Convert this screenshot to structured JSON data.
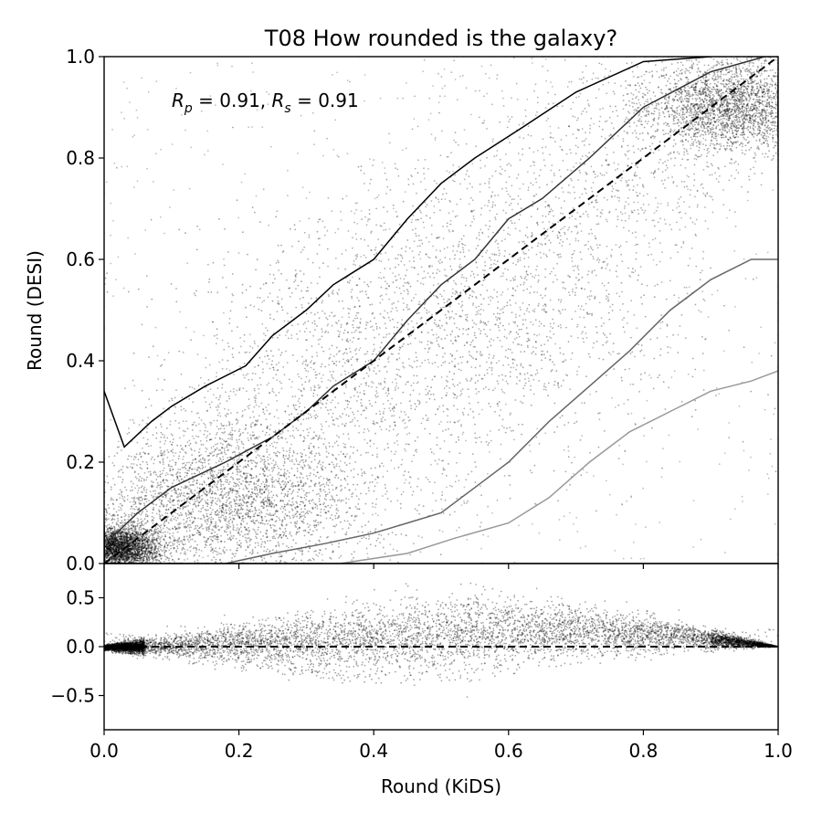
{
  "chart_data": {
    "type": "scatter",
    "title": "T08 How rounded is the galaxy?",
    "annotation": {
      "rp_symbol": "R",
      "rp_sub": "p",
      "rp_value": " = 0.91, ",
      "rs_symbol": "R",
      "rs_sub": "s",
      "rs_value": " = 0.91"
    },
    "xlabel": "Round (KiDS)",
    "main_panel": {
      "ylabel": "Round (DESI)",
      "xlim": [
        0,
        1
      ],
      "ylim": [
        0,
        1
      ],
      "xticks": [
        "0.0",
        "0.2",
        "0.4",
        "0.6",
        "0.8",
        "1.0"
      ],
      "yticks": [
        "0.0",
        "0.2",
        "0.4",
        "0.6",
        "0.8",
        "1.0"
      ],
      "reference_line": {
        "style": "dashed",
        "from": [
          0,
          0
        ],
        "to": [
          1,
          1
        ]
      },
      "point_color": "#000000",
      "contour_colors": [
        "#000000",
        "#333333",
        "#666666",
        "#999999",
        "#bbbbbb"
      ],
      "density_clusters": [
        {
          "x": 0.02,
          "y": 0.03,
          "spread": 0.03,
          "weight": "very high"
        },
        {
          "x": 0.2,
          "y": 0.12,
          "spread": 0.1,
          "weight": "high"
        },
        {
          "x": 0.5,
          "y": 0.45,
          "spread": 0.2,
          "weight": "medium"
        },
        {
          "x": 0.93,
          "y": 0.9,
          "spread": 0.06,
          "weight": "high"
        }
      ],
      "contours": [
        [
          [
            0.0,
            0.34
          ],
          [
            0.03,
            0.23
          ],
          [
            0.07,
            0.28
          ],
          [
            0.1,
            0.31
          ],
          [
            0.15,
            0.35
          ],
          [
            0.21,
            0.39
          ],
          [
            0.25,
            0.45
          ],
          [
            0.3,
            0.5
          ],
          [
            0.34,
            0.55
          ],
          [
            0.4,
            0.6
          ],
          [
            0.45,
            0.68
          ],
          [
            0.5,
            0.75
          ],
          [
            0.55,
            0.8
          ],
          [
            0.62,
            0.86
          ],
          [
            0.7,
            0.93
          ],
          [
            0.8,
            0.99
          ],
          [
            0.9,
            1.0
          ]
        ],
        [
          [
            0.01,
            0.05
          ],
          [
            0.05,
            0.1
          ],
          [
            0.1,
            0.15
          ],
          [
            0.18,
            0.2
          ],
          [
            0.25,
            0.25
          ],
          [
            0.3,
            0.3
          ],
          [
            0.34,
            0.35
          ],
          [
            0.4,
            0.4
          ],
          [
            0.45,
            0.48
          ],
          [
            0.5,
            0.55
          ],
          [
            0.55,
            0.6
          ],
          [
            0.6,
            0.68
          ],
          [
            0.65,
            0.72
          ],
          [
            0.72,
            0.8
          ],
          [
            0.8,
            0.9
          ],
          [
            0.9,
            0.97
          ],
          [
            0.98,
            1.0
          ]
        ],
        [
          [
            0.18,
            0.0
          ],
          [
            0.25,
            0.02
          ],
          [
            0.33,
            0.04
          ],
          [
            0.4,
            0.06
          ],
          [
            0.45,
            0.08
          ],
          [
            0.5,
            0.1
          ],
          [
            0.55,
            0.15
          ],
          [
            0.6,
            0.2
          ],
          [
            0.66,
            0.28
          ],
          [
            0.72,
            0.35
          ],
          [
            0.78,
            0.42
          ],
          [
            0.84,
            0.5
          ],
          [
            0.9,
            0.56
          ],
          [
            0.96,
            0.6
          ],
          [
            1.0,
            0.6
          ]
        ],
        [
          [
            0.35,
            0.0
          ],
          [
            0.45,
            0.02
          ],
          [
            0.52,
            0.05
          ],
          [
            0.6,
            0.08
          ],
          [
            0.66,
            0.13
          ],
          [
            0.72,
            0.2
          ],
          [
            0.78,
            0.26
          ],
          [
            0.84,
            0.3
          ],
          [
            0.9,
            0.34
          ],
          [
            0.96,
            0.36
          ],
          [
            1.0,
            0.38
          ]
        ]
      ]
    },
    "residual_panel": {
      "ylim": [
        -0.85,
        0.85
      ],
      "yticks": [
        {
          "value": 0.5,
          "label": "0.5"
        },
        {
          "value": 0.0,
          "label": "0.0"
        },
        {
          "value": -0.5,
          "label": "−0.5"
        }
      ],
      "xticks": [
        "0.0",
        "0.2",
        "0.4",
        "0.6",
        "0.8",
        "1.0"
      ],
      "reference_line": {
        "style": "dashed",
        "y": 0
      },
      "band_upper": [
        [
          0,
          0
        ],
        [
          0.2,
          0.12
        ],
        [
          0.4,
          0.25
        ],
        [
          0.55,
          0.32
        ],
        [
          0.7,
          0.28
        ],
        [
          0.85,
          0.18
        ],
        [
          1.0,
          0.0
        ]
      ],
      "band_lower": [
        [
          0,
          -0.04
        ],
        [
          0.2,
          -0.25
        ],
        [
          0.4,
          -0.38
        ],
        [
          0.55,
          -0.35
        ],
        [
          0.7,
          -0.2
        ],
        [
          0.85,
          -0.08
        ],
        [
          1.0,
          0.0
        ]
      ]
    }
  }
}
